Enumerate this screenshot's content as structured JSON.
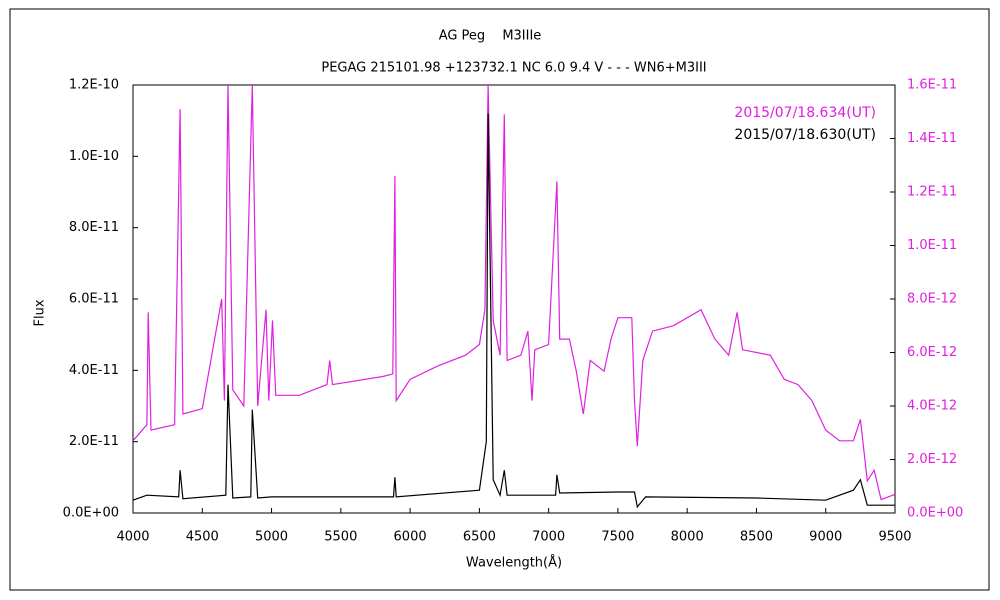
{
  "chart_data": {
    "type": "line",
    "title": "AG Peg　 M3IIIe",
    "subtitle": "PEGAG 215101.98 +123732.1 NC 6.0 9.4 V - - - WN6+M3III",
    "x_label": "Wavelength(Å)",
    "y_label": "Flux",
    "xlim": [
      4000,
      9500
    ],
    "xticks": [
      4000,
      4500,
      5000,
      5500,
      6000,
      6500,
      7000,
      7500,
      8000,
      8500,
      9000,
      9500
    ],
    "ylim": [
      0,
      1.2e-10
    ],
    "yticks": [
      {
        "value": 0,
        "label": "0.0E+00"
      },
      {
        "value": 2e-11,
        "label": "2.0E-11"
      },
      {
        "value": 4e-11,
        "label": "4.0E-11"
      },
      {
        "value": 6e-11,
        "label": "6.0E-11"
      },
      {
        "value": 8e-11,
        "label": "8.0E-11"
      },
      {
        "value": 1e-10,
        "label": "1.0E-10"
      },
      {
        "value": 1.2e-10,
        "label": "1.2E-10"
      }
    ],
    "y2lim": [
      0,
      1.6e-11
    ],
    "y2ticks": [
      {
        "value": 0,
        "label": "0.0E+00"
      },
      {
        "value": 2e-12,
        "label": "2.0E-12"
      },
      {
        "value": 4e-12,
        "label": "4.0E-12"
      },
      {
        "value": 6e-12,
        "label": "6.0E-12"
      },
      {
        "value": 8e-12,
        "label": "8.0E-12"
      },
      {
        "value": 1e-11,
        "label": "1.0E-11"
      },
      {
        "value": 1.2e-11,
        "label": "1.2E-11"
      },
      {
        "value": 1.4e-11,
        "label": "1.4E-11"
      },
      {
        "value": 1.6e-11,
        "label": "1.6E-11"
      }
    ],
    "y2_color": "#e020e0",
    "grid": false,
    "legend": "top-right",
    "series": [
      {
        "name": "2015/07/18.634(UT)",
        "color": "#e020e0",
        "axis": "y2",
        "x": [
          4000,
          4100,
          4110,
          4130,
          4300,
          4340,
          4360,
          4500,
          4640,
          4660,
          4686,
          4720,
          4800,
          4861,
          4900,
          4960,
          4980,
          5007,
          5030,
          5200,
          5400,
          5420,
          5440,
          5800,
          5875,
          5890,
          5900,
          6000,
          6200,
          6400,
          6500,
          6540,
          6563,
          6600,
          6650,
          6680,
          6700,
          6800,
          6850,
          6880,
          6900,
          7000,
          7060,
          7080,
          7150,
          7200,
          7250,
          7300,
          7400,
          7450,
          7500,
          7600,
          7620,
          7640,
          7680,
          7750,
          7900,
          8100,
          8200,
          8300,
          8360,
          8400,
          8600,
          8700,
          8800,
          8900,
          9000,
          9100,
          9200,
          9250,
          9300,
          9350,
          9400,
          9500
        ],
        "values": [
          2.7e-12,
          3.3e-12,
          7.5e-12,
          3.1e-12,
          3.3e-12,
          1.51e-11,
          3.7e-12,
          3.9e-12,
          8e-12,
          4.2e-12,
          1.6e-11,
          4.6e-12,
          4e-12,
          1.6e-11,
          4e-12,
          7.6e-12,
          4.2e-12,
          7.2e-12,
          4.4e-12,
          4.4e-12,
          4.8e-12,
          5.7e-12,
          4.8e-12,
          5.1e-12,
          5.2e-12,
          1.26e-11,
          4.2e-12,
          5e-12,
          5.5e-12,
          5.9e-12,
          6.3e-12,
          7.6e-12,
          1.6e-11,
          7.2e-12,
          5.9e-12,
          1.49e-11,
          5.7e-12,
          5.9e-12,
          6.8e-12,
          4.2e-12,
          6.1e-12,
          6.3e-12,
          1.24e-11,
          6.5e-12,
          6.5e-12,
          5.3e-12,
          3.7e-12,
          5.7e-12,
          5.3e-12,
          6.5e-12,
          7.3e-12,
          7.3e-12,
          4.2e-12,
          2.5e-12,
          5.7e-12,
          6.8e-12,
          7e-12,
          7.6e-12,
          6.5e-12,
          5.9e-12,
          7.5e-12,
          6.1e-12,
          5.9e-12,
          5e-12,
          4.8e-12,
          4.2e-12,
          3.1e-12,
          2.7e-12,
          2.7e-12,
          3.5e-12,
          1.2e-12,
          1.6e-12,
          5e-13,
          7e-13
        ]
      },
      {
        "name": "2015/07/18.630(UT)",
        "color": "#000000",
        "x": [
          4000,
          4100,
          4330,
          4340,
          4360,
          4670,
          4686,
          4720,
          4850,
          4861,
          4900,
          5000,
          5200,
          5880,
          5890,
          5900,
          6500,
          6550,
          6563,
          6600,
          6650,
          6680,
          6700,
          7050,
          7060,
          7080,
          7500,
          7620,
          7640,
          7700,
          8500,
          9000,
          9200,
          9250,
          9300,
          9500
        ],
        "values": [
          3.6e-12,
          5e-12,
          4.5e-12,
          1.2e-11,
          4e-12,
          5e-12,
          3.6e-11,
          4.2e-12,
          4.5e-12,
          2.9e-11,
          4.2e-12,
          4.5e-12,
          4.5e-12,
          4.5e-12,
          1e-11,
          4.5e-12,
          6.4e-12,
          2e-11,
          1.12e-10,
          9.3e-12,
          5e-12,
          1.2e-11,
          5e-12,
          5e-12,
          1.07e-11,
          5.6e-12,
          5.9e-12,
          5.9e-12,
          1.7e-12,
          4.5e-12,
          4.2e-12,
          3.6e-12,
          6.4e-12,
          9.3e-12,
          2.2e-12,
          2.2e-12
        ]
      }
    ]
  }
}
